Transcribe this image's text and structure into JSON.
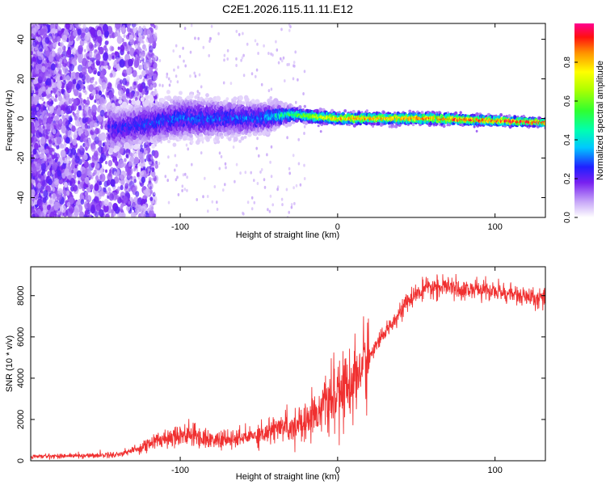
{
  "title": "C2E1.2026.115.11.11.E12",
  "chart_data": [
    {
      "type": "heatmap",
      "xlabel": "Height of straight line (km)",
      "ylabel": "Frequency (Hz)",
      "xlim": [
        -195,
        132
      ],
      "ylim": [
        -50,
        48
      ],
      "xticks": [
        -100,
        0,
        100
      ],
      "yticks": [
        -40,
        -20,
        0,
        20,
        40
      ],
      "colorbar": {
        "label": "Normalized spectral amplitude",
        "range": [
          0,
          1
        ],
        "ticks": [
          "0.0",
          "0.2",
          "0.4",
          "0.6",
          "0.8"
        ],
        "tick_values": [
          0,
          0.2,
          0.4,
          0.6,
          0.8
        ]
      },
      "description_points": [
        {
          "x": -195,
          "f_center": 0,
          "f_spread": 48,
          "amp": 0.12
        },
        {
          "x": -140,
          "f_center": -5,
          "f_spread": 10,
          "amp": 0.25
        },
        {
          "x": -100,
          "f_center": 0,
          "f_spread": 10,
          "amp": 0.3
        },
        {
          "x": -50,
          "f_center": 0,
          "f_spread": 8,
          "amp": 0.3
        },
        {
          "x": -30,
          "f_center": 2,
          "f_spread": 4,
          "amp": 0.5
        },
        {
          "x": 0,
          "f_center": 0,
          "f_spread": 3,
          "amp": 0.8
        },
        {
          "x": 60,
          "f_center": 0,
          "f_spread": 3,
          "amp": 0.85
        },
        {
          "x": 130,
          "f_center": -2,
          "f_spread": 2,
          "amp": 0.95
        }
      ]
    },
    {
      "type": "line",
      "xlabel": "Height of straight line (km)",
      "ylabel": "SNR (10 * v/v)",
      "xlim": [
        -195,
        132
      ],
      "ylim": [
        0,
        9400
      ],
      "xticks": [
        -100,
        0,
        100
      ],
      "yticks": [
        0,
        2000,
        4000,
        6000,
        8000
      ],
      "color": "#f03030",
      "series": [
        {
          "name": "SNR",
          "x": [
            -195,
            -180,
            -160,
            -140,
            -130,
            -120,
            -110,
            -100,
            -90,
            -80,
            -70,
            -60,
            -50,
            -40,
            -30,
            -20,
            -10,
            0,
            10,
            20,
            30,
            40,
            50,
            60,
            70,
            80,
            90,
            100,
            110,
            120,
            132
          ],
          "y": [
            200,
            230,
            250,
            300,
            500,
            800,
            1100,
            1300,
            1200,
            1000,
            1000,
            1100,
            1300,
            1500,
            1700,
            2000,
            2600,
            3200,
            4000,
            5000,
            6200,
            7300,
            8100,
            8400,
            8400,
            8300,
            8300,
            8200,
            8100,
            7900,
            7800
          ]
        }
      ]
    }
  ]
}
